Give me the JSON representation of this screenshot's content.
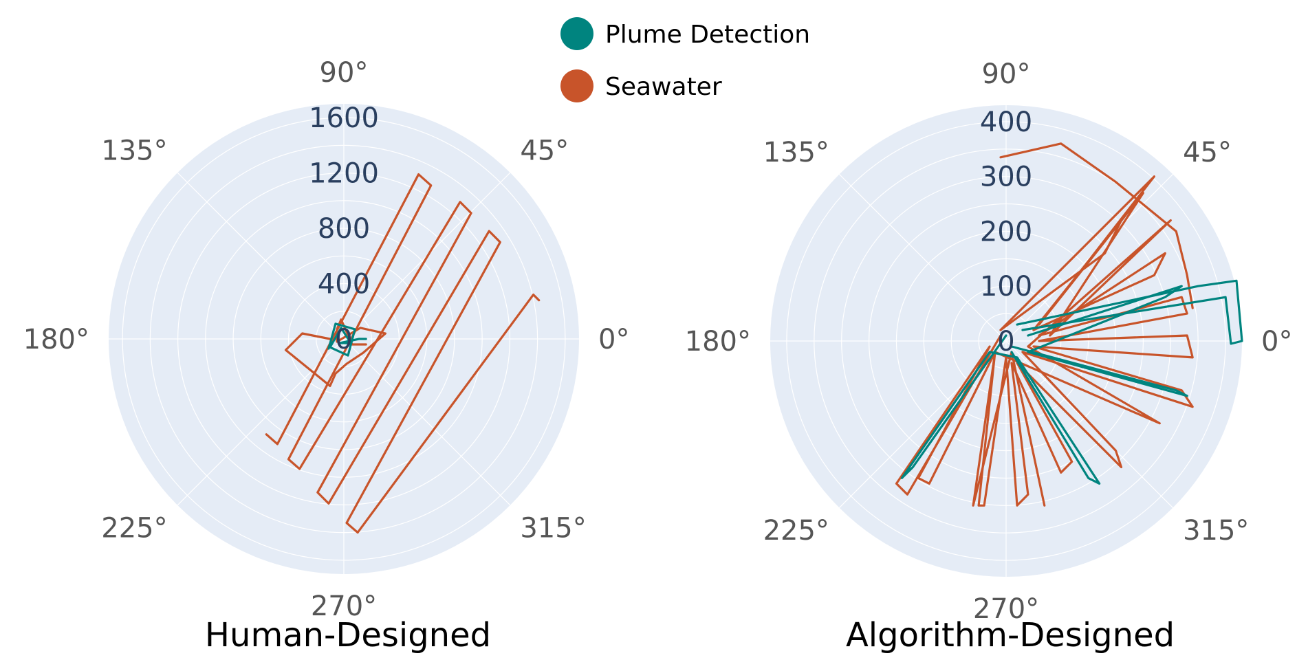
{
  "legend": [
    {
      "name": "Plume Detection",
      "color": "#00847f"
    },
    {
      "name": "Seawater",
      "color": "#c8542a"
    }
  ],
  "chart_data": [
    {
      "type": "scatter",
      "coordinate_system": "polar",
      "title": "Human-Designed",
      "angular_ticks": [
        "0°",
        "45°",
        "90°",
        "135°",
        "180°",
        "225°",
        "270°",
        "315°"
      ],
      "radial_ticks": [
        "0",
        "400",
        "800",
        "1200",
        "1600"
      ],
      "radial_range": [
        0,
        1700
      ],
      "series": [
        {
          "name": "Seawater",
          "color": "#c8542a",
          "paths": [
            [
              [
                -100,
                0
              ],
              [
                -300,
                40
              ],
              [
                -420,
                -80
              ],
              [
                -100,
                -340
              ],
              [
                -60,
                -250
              ],
              [
                20,
                -180
              ],
              [
                140,
                -100
              ],
              [
                300,
                40
              ],
              [
                120,
                80
              ],
              [
                -50,
                -20
              ],
              [
                -50,
                70
              ],
              [
                -20,
                140
              ],
              [
                60,
                -40
              ],
              [
                160,
                -40
              ]
            ],
            [
              [
                -560,
                -690
              ],
              [
                -480,
                -760
              ],
              [
                540,
                1190
              ],
              [
                630,
                1110
              ],
              [
                -400,
                -870
              ],
              [
                -320,
                -940
              ],
              [
                840,
                990
              ],
              [
                920,
                910
              ],
              [
                -190,
                -1110
              ],
              [
                -110,
                -1190
              ],
              [
                1050,
                780
              ],
              [
                1130,
                700
              ],
              [
                20,
                -1330
              ],
              [
                100,
                -1400
              ],
              [
                1370,
                320
              ],
              [
                1410,
                280
              ]
            ]
          ]
        },
        {
          "name": "Plume Detection",
          "color": "#00847f",
          "paths": [
            [
              [
                -110,
                -70
              ],
              [
                -60,
                110
              ],
              [
                80,
                70
              ],
              [
                30,
                -120
              ],
              [
                -100,
                -60
              ],
              [
                -20,
                80
              ],
              [
                50,
                -30
              ],
              [
                -30,
                -30
              ],
              [
                110,
                0
              ],
              [
                160,
                0
              ]
            ]
          ]
        }
      ]
    },
    {
      "type": "scatter",
      "coordinate_system": "polar",
      "title": "Algorithm-Designed",
      "angular_ticks": [
        "0°",
        "45°",
        "90°",
        "135°",
        "180°",
        "225°",
        "270°",
        "315°"
      ],
      "radial_ticks": [
        "0",
        "100",
        "200",
        "300",
        "400"
      ],
      "radial_range": [
        0,
        430
      ],
      "series": [
        {
          "name": "Seawater",
          "color": "#c8542a",
          "paths": [
            [
              [
                -10,
                20
              ],
              [
                180,
                160
              ],
              [
                210,
                220
              ],
              [
                50,
                20
              ],
              [
                270,
                120
              ],
              [
                290,
                160
              ],
              [
                60,
                10
              ],
              [
                320,
                80
              ],
              [
                330,
                50
              ],
              [
                60,
                0
              ],
              [
                330,
                10
              ],
              [
                340,
                -30
              ],
              [
                50,
                -10
              ],
              [
                320,
                -90
              ],
              [
                340,
                -120
              ],
              [
                30,
                -20
              ],
              [
                200,
                -200
              ],
              [
                210,
                -230
              ],
              [
                20,
                -40
              ],
              [
                120,
                -220
              ],
              [
                100,
                -240
              ],
              [
                10,
                -40
              ],
              [
                40,
                -280
              ],
              [
                20,
                -300
              ],
              [
                0,
                -30
              ],
              [
                -40,
                -300
              ],
              [
                -50,
                -300
              ],
              [
                -20,
                -20
              ],
              [
                -140,
                -260
              ],
              [
                -160,
                -250
              ],
              [
                -30,
                -10
              ],
              [
                -200,
                -260
              ],
              [
                -180,
                -280
              ],
              [
                -10,
                10
              ]
            ],
            [
              [
                -10,
                335
              ],
              [
                100,
                360
              ],
              [
                200,
                290
              ],
              [
                310,
                200
              ],
              [
                330,
                120
              ],
              [
                340,
                60
              ]
            ],
            [
              [
                -10,
                20
              ],
              [
                270,
                300
              ],
              [
                60,
                30
              ],
              [
                250,
                270
              ],
              [
                80,
                10
              ],
              [
                300,
                220
              ],
              [
                40,
                -10
              ],
              [
                280,
                -150
              ],
              [
                -20,
                -20
              ],
              [
                -60,
                -300
              ],
              [
                10,
                -20
              ],
              [
                70,
                -300
              ]
            ]
          ]
        },
        {
          "name": "Plume Detection",
          "color": "#00847f",
          "paths": [
            [
              [
                20,
                30
              ],
              [
                350,
                100
              ],
              [
                420,
                110
              ],
              [
                430,
                0
              ],
              [
                410,
                -5
              ],
              [
                400,
                80
              ],
              [
                30,
                20
              ]
            ],
            [
              [
                0,
                10
              ],
              [
                -170,
                -230
              ],
              [
                -190,
                -250
              ],
              [
                -30,
                -20
              ],
              [
                20,
                -30
              ],
              [
                170,
                -260
              ],
              [
                150,
                -250
              ],
              [
                10,
                -20
              ]
            ],
            [
              [
                10,
                -10
              ],
              [
                310,
                -90
              ],
              [
                330,
                -100
              ],
              [
                40,
                -20
              ],
              [
                290,
                80
              ],
              [
                320,
                100
              ],
              [
                40,
                10
              ]
            ]
          ]
        }
      ]
    }
  ]
}
